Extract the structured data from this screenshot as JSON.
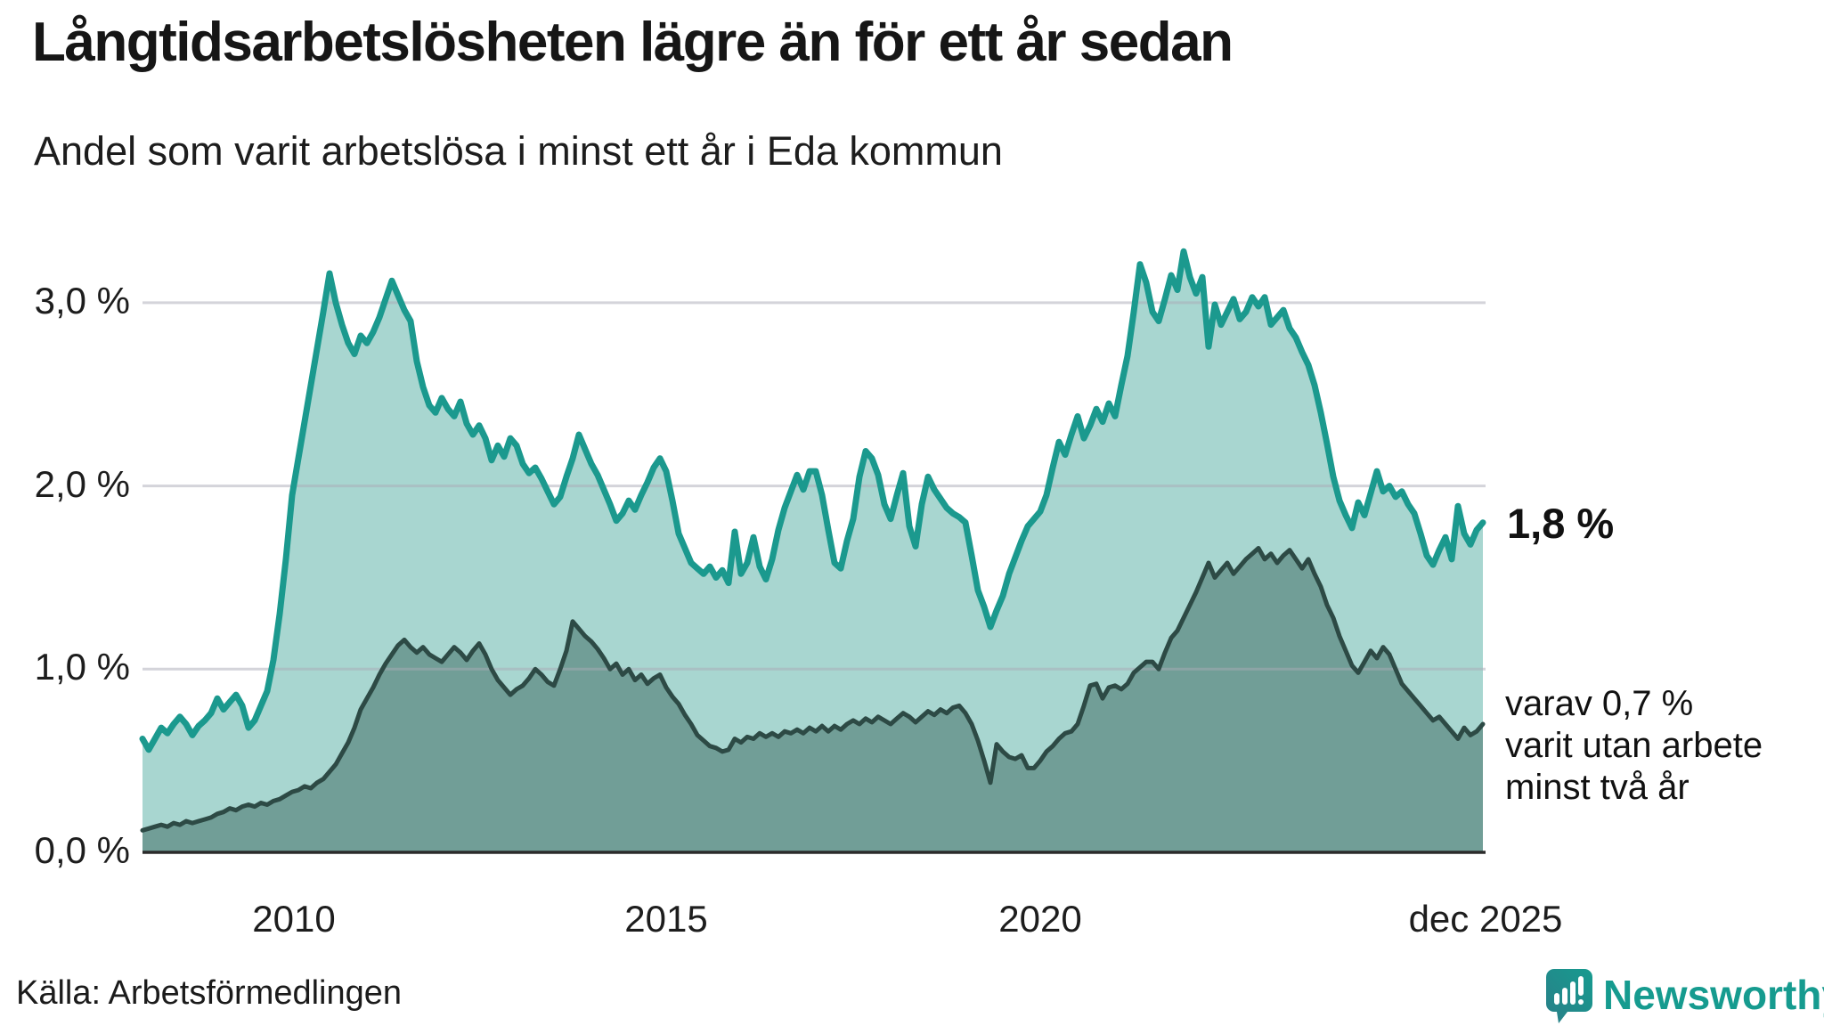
{
  "title": "Långtidsarbetslösheten lägre än för ett år sedan",
  "subtitle": "Andel som varit arbetslösa i minst ett år i Eda kommun",
  "source": "Källa: Arbetsförmedlingen",
  "branding": {
    "name": "Newsworthy",
    "color": "#169b8f",
    "icon": "newsworthy-speech-bubble-barchart-icon"
  },
  "annotations": {
    "latest_value_label": "1,8 %",
    "secondary_label_lines": [
      "varav 0,7 %",
      "varit utan arbete",
      "minst två år"
    ]
  },
  "chart_data": {
    "type": "area",
    "title": "Långtidsarbetslösheten lägre än för ett år sedan",
    "subtitle": "Andel som varit arbetslösa i minst ett år i Eda kommun",
    "xlabel": "",
    "ylabel": "",
    "ylim": [
      0,
      3.4
    ],
    "grid": "horizontal",
    "legend_position": "right-edge-annotations",
    "frequency": "monthly",
    "x_range": [
      "jan 2008",
      "dec 2025"
    ],
    "y_ticks": [
      {
        "value": 0,
        "label": "0,0 %"
      },
      {
        "value": 1,
        "label": "1,0 %"
      },
      {
        "value": 2,
        "label": "2,0 %"
      },
      {
        "value": 3,
        "label": "3,0 %"
      }
    ],
    "x_ticks": [
      {
        "value": 2010,
        "label": "2010"
      },
      {
        "value": 2015,
        "label": "2015"
      },
      {
        "value": 2020,
        "label": "2020"
      },
      {
        "value": 2025.92,
        "label": "dec 2025"
      }
    ],
    "axis_color": "#2b2b2b",
    "gridline_color": "#dcdce2",
    "series": [
      {
        "name": "Andel arbetslösa minst ett år",
        "latest_value": 1.8,
        "line_color": "#1b998e",
        "fill_color": "#a8d6d0",
        "line_width": 7,
        "start": "jan 2008",
        "values": [
          0.62,
          0.56,
          0.62,
          0.68,
          0.65,
          0.7,
          0.74,
          0.7,
          0.64,
          0.69,
          0.72,
          0.76,
          0.84,
          0.78,
          0.82,
          0.86,
          0.8,
          0.68,
          0.72,
          0.8,
          0.88,
          1.05,
          1.3,
          1.6,
          1.95,
          2.15,
          2.35,
          2.55,
          2.75,
          2.95,
          3.16,
          3.0,
          2.88,
          2.78,
          2.72,
          2.82,
          2.78,
          2.84,
          2.92,
          3.02,
          3.12,
          3.04,
          2.96,
          2.9,
          2.68,
          2.54,
          2.44,
          2.4,
          2.48,
          2.42,
          2.38,
          2.46,
          2.34,
          2.28,
          2.33,
          2.26,
          2.14,
          2.22,
          2.16,
          2.26,
          2.22,
          2.12,
          2.07,
          2.1,
          2.04,
          1.97,
          1.9,
          1.94,
          2.05,
          2.15,
          2.28,
          2.2,
          2.12,
          2.06,
          1.98,
          1.9,
          1.81,
          1.85,
          1.92,
          1.87,
          1.95,
          2.02,
          2.1,
          2.15,
          2.08,
          1.92,
          1.74,
          1.66,
          1.58,
          1.55,
          1.52,
          1.56,
          1.5,
          1.54,
          1.47,
          1.75,
          1.52,
          1.58,
          1.72,
          1.56,
          1.49,
          1.6,
          1.76,
          1.88,
          1.97,
          2.06,
          1.98,
          2.08,
          2.08,
          1.95,
          1.76,
          1.58,
          1.55,
          1.7,
          1.82,
          2.05,
          2.19,
          2.15,
          2.06,
          1.9,
          1.82,
          1.95,
          2.07,
          1.78,
          1.67,
          1.9,
          2.05,
          1.98,
          1.93,
          1.88,
          1.85,
          1.83,
          1.8,
          1.62,
          1.43,
          1.34,
          1.23,
          1.32,
          1.4,
          1.52,
          1.61,
          1.7,
          1.78,
          1.82,
          1.86,
          1.95,
          2.1,
          2.24,
          2.17,
          2.28,
          2.38,
          2.26,
          2.33,
          2.42,
          2.35,
          2.45,
          2.38,
          2.55,
          2.71,
          2.95,
          3.21,
          3.11,
          2.95,
          2.9,
          3.02,
          3.15,
          3.07,
          3.28,
          3.14,
          3.05,
          3.14,
          2.76,
          2.99,
          2.88,
          2.95,
          3.02,
          2.91,
          2.95,
          3.03,
          2.98,
          3.03,
          2.88,
          2.92,
          2.96,
          2.86,
          2.81,
          2.73,
          2.66,
          2.55,
          2.4,
          2.23,
          2.05,
          1.92,
          1.84,
          1.77,
          1.91,
          1.84,
          1.96,
          2.08,
          1.97,
          2.0,
          1.94,
          1.97,
          1.9,
          1.85,
          1.74,
          1.62,
          1.57,
          1.65,
          1.72,
          1.6,
          1.89,
          1.74,
          1.68,
          1.76,
          1.8
        ]
      },
      {
        "name": "varav utan arbete minst två år",
        "latest_value": 0.7,
        "line_color": "#2d4a45",
        "fill_color": "#719e97",
        "line_width": 5,
        "start": "jan 2008",
        "values": [
          0.12,
          0.13,
          0.14,
          0.15,
          0.14,
          0.16,
          0.15,
          0.17,
          0.16,
          0.17,
          0.18,
          0.19,
          0.21,
          0.22,
          0.24,
          0.23,
          0.25,
          0.26,
          0.25,
          0.27,
          0.26,
          0.28,
          0.29,
          0.31,
          0.33,
          0.34,
          0.36,
          0.35,
          0.38,
          0.4,
          0.44,
          0.48,
          0.54,
          0.6,
          0.68,
          0.78,
          0.84,
          0.9,
          0.97,
          1.03,
          1.08,
          1.13,
          1.16,
          1.12,
          1.09,
          1.12,
          1.08,
          1.06,
          1.04,
          1.08,
          1.12,
          1.09,
          1.05,
          1.1,
          1.14,
          1.08,
          1.0,
          0.94,
          0.9,
          0.86,
          0.89,
          0.91,
          0.95,
          1.0,
          0.97,
          0.93,
          0.91,
          1.0,
          1.1,
          1.26,
          1.22,
          1.18,
          1.15,
          1.11,
          1.06,
          1.0,
          1.03,
          0.97,
          1.0,
          0.94,
          0.97,
          0.92,
          0.95,
          0.97,
          0.9,
          0.85,
          0.81,
          0.75,
          0.7,
          0.64,
          0.61,
          0.58,
          0.57,
          0.55,
          0.56,
          0.62,
          0.6,
          0.63,
          0.62,
          0.65,
          0.63,
          0.65,
          0.63,
          0.66,
          0.65,
          0.67,
          0.65,
          0.68,
          0.66,
          0.69,
          0.66,
          0.69,
          0.67,
          0.7,
          0.72,
          0.7,
          0.73,
          0.71,
          0.74,
          0.72,
          0.7,
          0.73,
          0.76,
          0.74,
          0.71,
          0.74,
          0.77,
          0.75,
          0.78,
          0.76,
          0.79,
          0.8,
          0.76,
          0.7,
          0.61,
          0.5,
          0.38,
          0.59,
          0.55,
          0.52,
          0.51,
          0.53,
          0.46,
          0.46,
          0.5,
          0.55,
          0.58,
          0.62,
          0.65,
          0.66,
          0.7,
          0.8,
          0.91,
          0.92,
          0.84,
          0.9,
          0.91,
          0.89,
          0.92,
          0.98,
          1.01,
          1.04,
          1.04,
          1.0,
          1.09,
          1.17,
          1.21,
          1.28,
          1.35,
          1.42,
          1.5,
          1.58,
          1.5,
          1.54,
          1.58,
          1.52,
          1.56,
          1.6,
          1.63,
          1.66,
          1.6,
          1.63,
          1.58,
          1.62,
          1.65,
          1.6,
          1.55,
          1.6,
          1.52,
          1.45,
          1.35,
          1.28,
          1.18,
          1.1,
          1.02,
          0.98,
          1.04,
          1.1,
          1.06,
          1.12,
          1.08,
          1.0,
          0.92,
          0.88,
          0.84,
          0.8,
          0.76,
          0.72,
          0.74,
          0.7,
          0.66,
          0.62,
          0.68,
          0.64,
          0.66,
          0.7
        ]
      }
    ]
  }
}
